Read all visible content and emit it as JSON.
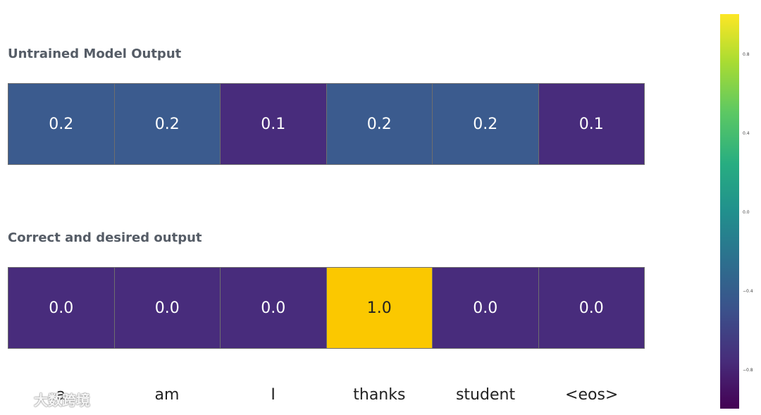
{
  "chart_data": [
    {
      "type": "heatmap",
      "title": "Untrained Model Output",
      "categories": [
        "a",
        "am",
        "I",
        "thanks",
        "student",
        "<eos>"
      ],
      "values": [
        "0.2",
        "0.2",
        "0.1",
        "0.2",
        "0.2",
        "0.1"
      ],
      "cell_colors": [
        "#3b5b8e",
        "#3b5b8e",
        "#482c7c",
        "#3b5b8e",
        "#3b5b8e",
        "#482c7c"
      ]
    },
    {
      "type": "heatmap",
      "title": "Correct and desired output",
      "categories": [
        "a",
        "am",
        "I",
        "thanks",
        "student",
        "<eos>"
      ],
      "values": [
        "0.0",
        "0.0",
        "0.0",
        "1.0",
        "0.0",
        "0.0"
      ],
      "cell_colors": [
        "#482c7c",
        "#482c7c",
        "#482c7c",
        "#fbc800",
        "#482c7c",
        "#482c7c"
      ]
    }
  ],
  "colorbar": {
    "colorscale": "viridis",
    "ticks": [
      "0.8",
      "0.4",
      "0.0",
      "−0.4",
      "−0.8"
    ]
  },
  "watermark": {
    "text": "大数跨境",
    "icon": "logo-icon"
  }
}
